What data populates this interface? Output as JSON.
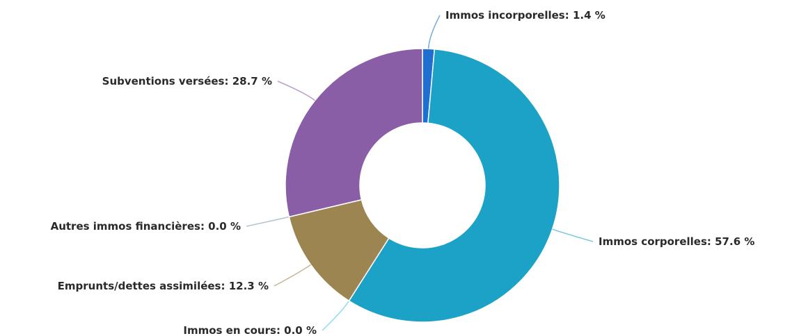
{
  "chart_data": {
    "type": "pie",
    "categories": [
      "Immos incorporelles",
      "Immos corporelles",
      "Immos en cours",
      "Emprunts/dettes assimilées",
      "Autres immos financières",
      "Subventions versées"
    ],
    "values": [
      1.4,
      57.6,
      0.0,
      12.3,
      0.0,
      28.7
    ],
    "value_labels": [
      "1.4 %",
      "57.6 %",
      "0.0 %",
      "12.3 %",
      "0.0 %",
      "28.7 %"
    ],
    "colors": [
      "#1e6fd0",
      "#1ba2c6",
      "#4fc3e0",
      "#9c8550",
      "#7f9aa8",
      "#8a5ea7"
    ]
  }
}
